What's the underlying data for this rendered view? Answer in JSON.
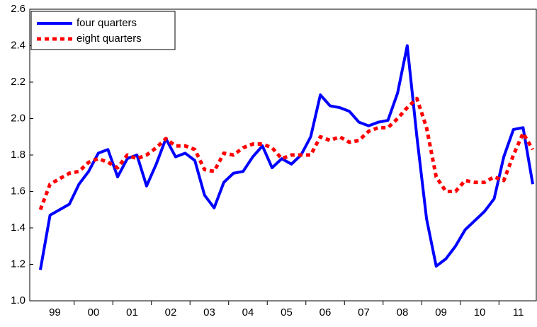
{
  "chart_data": {
    "type": "line",
    "categories": [
      null,
      "99",
      null,
      null,
      null,
      "00",
      null,
      null,
      null,
      "01",
      null,
      null,
      null,
      "02",
      null,
      null,
      null,
      "03",
      null,
      null,
      null,
      "04",
      null,
      null,
      null,
      "05",
      null,
      null,
      null,
      "06",
      null,
      null,
      null,
      "07",
      null,
      null,
      null,
      "08",
      null,
      null,
      null,
      "09",
      null,
      null,
      null,
      "10",
      null,
      null,
      null,
      "11",
      null,
      null
    ],
    "series": [
      {
        "name": "four quarters",
        "color": "#0000ff",
        "style": "solid",
        "values": [
          1.17,
          1.47,
          1.5,
          1.53,
          1.64,
          1.71,
          1.81,
          1.83,
          1.68,
          1.78,
          1.8,
          1.63,
          1.75,
          1.89,
          1.79,
          1.81,
          1.77,
          1.58,
          1.51,
          1.65,
          1.7,
          1.71,
          1.79,
          1.85,
          1.73,
          1.78,
          1.75,
          1.8,
          1.9,
          2.13,
          2.07,
          2.06,
          2.04,
          1.98,
          1.96,
          1.98,
          1.99,
          2.14,
          2.4,
          1.9,
          1.45,
          1.19,
          1.23,
          1.3,
          1.39,
          1.44,
          1.49,
          1.56,
          1.79,
          1.94,
          1.95,
          1.64
        ]
      },
      {
        "name": "eight quarters",
        "color": "#ff0000",
        "style": "dotted",
        "values": [
          1.5,
          1.64,
          1.67,
          1.7,
          1.71,
          1.76,
          1.78,
          1.76,
          1.73,
          1.8,
          1.78,
          1.8,
          1.84,
          1.89,
          1.85,
          1.85,
          1.83,
          1.72,
          1.71,
          1.81,
          1.8,
          1.84,
          1.86,
          1.86,
          1.84,
          1.78,
          1.8,
          1.8,
          1.8,
          1.9,
          1.88,
          1.9,
          1.87,
          1.88,
          1.93,
          1.95,
          1.95,
          2.0,
          2.06,
          2.11,
          1.95,
          1.68,
          1.6,
          1.6,
          1.66,
          1.65,
          1.65,
          1.68,
          1.66,
          1.8,
          1.92,
          1.83
        ]
      }
    ],
    "ylim": [
      1.0,
      2.6
    ],
    "yticks": [
      {
        "value": 1.0,
        "label": "1.0"
      },
      1.2,
      1.4,
      1.6,
      1.8,
      {
        "value": 2.0,
        "label": "2.0"
      },
      2.2,
      2.4,
      2.6
    ],
    "legend": "upper-left"
  }
}
